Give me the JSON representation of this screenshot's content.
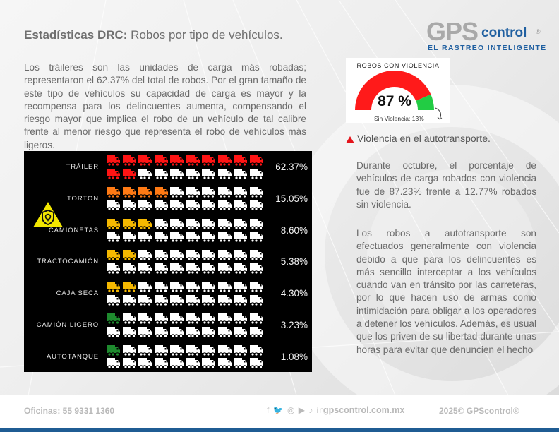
{
  "header": {
    "title_bold": "Estadísticas DRC:",
    "title_rest": " Robos por tipo de vehículos."
  },
  "logo": {
    "gps": "GPS",
    "control": "control",
    "registered": "®",
    "tagline": "EL RASTREO INTELIGENTE"
  },
  "intro_text": "Los tráileres son las unidades de carga más robadas; representaron el 62.37% del total de robos. Por el gran tamaño de este tipo de vehículos su capacidad de carga es mayor y la recompensa para los delincuentes aumenta, compensando el riesgo mayor que implica el robo de un vehículo de tal calibre frente al menor riesgo que representa el robo de vehículos más ligeros.",
  "gauge": {
    "title": "ROBOS CON VIOLENCIA",
    "value_label": "87 %",
    "value": 87,
    "sin_violencia_label": "Sin Violencia: 13%",
    "colors": {
      "violence": "#ff1a1a",
      "no_violence": "#22cc44"
    }
  },
  "chart_data": {
    "type": "pictogram",
    "title": "Robos por tipo de vehículos",
    "icons_per_category": 20,
    "categories": [
      "TRÁILER",
      "TORTON",
      "CAMIONETAS",
      "TRACTOCAMIÓN",
      "CAJA SECA",
      "CAMIÓN LIGERO",
      "AUTOTANQUE"
    ],
    "values": [
      62.37,
      15.05,
      8.6,
      5.38,
      4.3,
      3.23,
      1.08
    ],
    "value_labels": [
      "62.37%",
      "15.05%",
      "8.60%",
      "5.38%",
      "4.30%",
      "3.23%",
      "1.08%"
    ],
    "filled_icons": [
      12,
      4,
      3,
      2,
      2,
      1,
      1
    ],
    "colors": [
      "#ff1414",
      "#ff7a14",
      "#f5b800",
      "#f5b800",
      "#f5b800",
      "#1e8a2e",
      "#1e8a2e"
    ],
    "empty_color": "#ffffff",
    "warning_icon": "shield-location-warning-icon"
  },
  "right": {
    "heading": "Violencia en el autotransporte.",
    "heading_icon": "red-triangle-icon",
    "p1": "Durante octubre, el porcentaje de vehículos de carga robados con violencia fue de 87.23% frente a 12.77% robados sin violencia.",
    "p2": "Los robos a autotransporte son efectuados generalmente con violencia debido a que para los delincuentes es más sencillo interceptar a los vehículos cuando van en tránsito por las carreteras, por lo que hacen uso de armas como intimidación para obligar a los operadores a detener los vehículos. Además, es usual que los priven de su libertad durante unas horas para evitar que denuncien el hecho"
  },
  "footer": {
    "offices": "Oficinas: 55 9331 1360",
    "social_icons": "f 🐦 ◎ ▶ ♪ in",
    "website": "gpscontrol.com.mx",
    "copyright": "2025© GPScontrol®"
  }
}
